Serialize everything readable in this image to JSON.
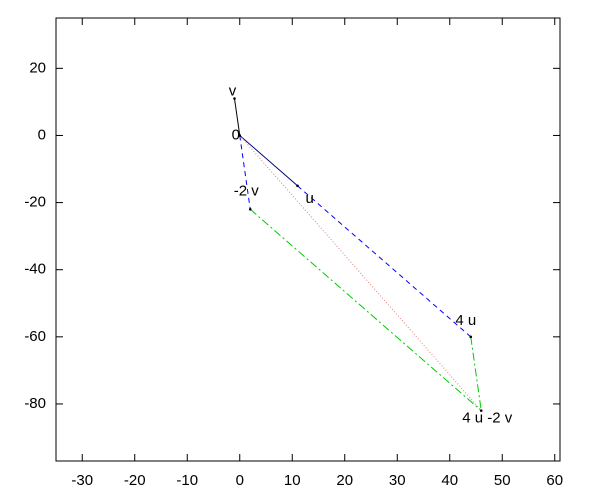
{
  "chart_data": {
    "type": "vector",
    "xlim": [
      -35,
      61
    ],
    "ylim": [
      -97,
      35
    ],
    "xticks": [
      -30,
      -20,
      -10,
      0,
      10,
      20,
      30,
      40,
      50,
      60
    ],
    "yticks": [
      -80,
      -60,
      -40,
      -20,
      0,
      20
    ],
    "points": [
      {
        "label": "0",
        "x": 0,
        "y": 0
      },
      {
        "label": "v",
        "x": -1,
        "y": 11
      },
      {
        "label": "u",
        "x": 11,
        "y": -15
      },
      {
        "label": "-2 v",
        "x": 2,
        "y": -22
      },
      {
        "label": "4 u",
        "x": 44,
        "y": -60
      },
      {
        "label": "4 u -2 v",
        "x": 46,
        "y": -82
      }
    ],
    "series": [
      {
        "color": "#000000",
        "style": "solid",
        "x": [
          0,
          -1
        ],
        "y": [
          0,
          11
        ]
      },
      {
        "color": "#000080",
        "style": "solid",
        "x": [
          0,
          11
        ],
        "y": [
          0,
          -15
        ]
      },
      {
        "color": "#0000ff",
        "style": "dashed",
        "x": [
          0,
          2
        ],
        "y": [
          0,
          -22
        ]
      },
      {
        "color": "#0000ff",
        "style": "dashed",
        "x": [
          11,
          44
        ],
        "y": [
          -15,
          -60
        ]
      },
      {
        "color": "#00cc00",
        "style": "dashdot",
        "x": [
          2,
          46
        ],
        "y": [
          -22,
          -82
        ]
      },
      {
        "color": "#00cc00",
        "style": "dashdot",
        "x": [
          44,
          46
        ],
        "y": [
          -60,
          -82
        ]
      },
      {
        "color": "#e08080",
        "style": "dotted",
        "x": [
          0,
          46
        ],
        "y": [
          0,
          -82
        ]
      }
    ]
  }
}
